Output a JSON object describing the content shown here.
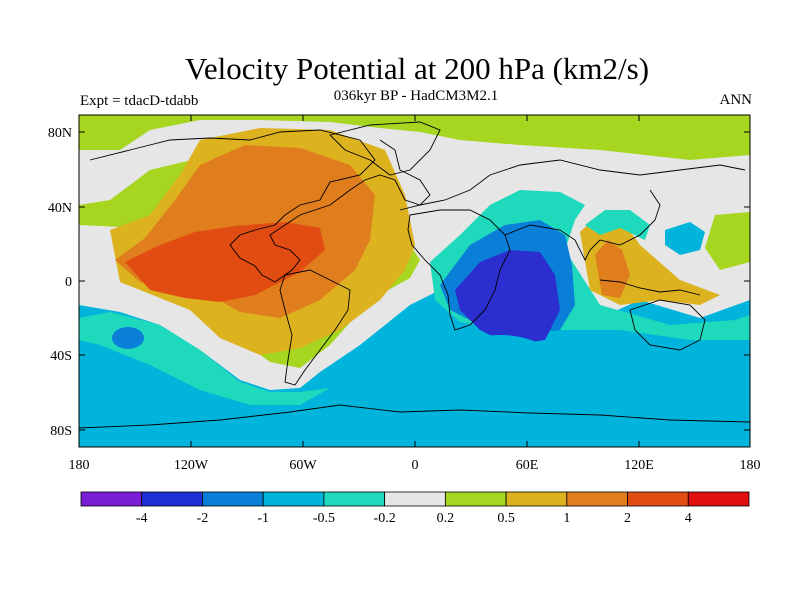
{
  "map": {
    "title": "Velocity Potential at 200 hPa (km2/s)",
    "subtitle": "036kyr BP - HadCM3M2.1",
    "experiment": "Expt = tdacD-tdabb",
    "season": "ANN",
    "lat_ticks": [
      "80N",
      "40N",
      "0",
      "40S",
      "80S"
    ],
    "lon_ticks": [
      "180",
      "120W",
      "60W",
      "0",
      "60E",
      "120E",
      "180"
    ],
    "colorbar": {
      "labels": [
        "-4",
        "-2",
        "-1",
        "-0.5",
        "-0.2",
        "0.2",
        "0.5",
        "1",
        "2",
        "4"
      ],
      "colors": [
        "#7a1fd6",
        "#1f2fd6",
        "#0a7fd8",
        "#00b4dc",
        "#1fd9bc",
        "#e6e6e6",
        "#a6d61f",
        "#dcb21f",
        "#e07d1c",
        "#e04c12",
        "#e01010"
      ]
    },
    "colors": {
      "strong_negative": "#2b2fcf",
      "negative": "#0a7fd8",
      "weak_negative": "#00b4dc",
      "near_zero_negative": "#1fd9bc",
      "neutral": "#e6e6e6",
      "weak_positive": "#a6d61f",
      "positive": "#dcb21f",
      "moderate_positive": "#e07d1c",
      "strong_positive": "#e04c12"
    }
  }
}
